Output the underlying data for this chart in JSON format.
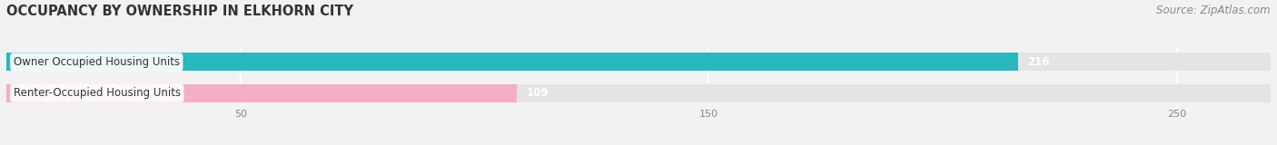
{
  "title": "OCCUPANCY BY OWNERSHIP IN ELKHORN CITY",
  "source": "Source: ZipAtlas.com",
  "categories": [
    "Owner Occupied Housing Units",
    "Renter-Occupied Housing Units"
  ],
  "values": [
    216,
    109
  ],
  "bar_colors": [
    "#29b8bf",
    "#f5afc4"
  ],
  "xlim": [
    0,
    270
  ],
  "xticks": [
    50,
    150,
    250
  ],
  "bar_height": 0.58,
  "title_fontsize": 10.5,
  "source_fontsize": 8.5,
  "label_fontsize": 8.5,
  "value_fontsize": 8.5,
  "background_color": "#f2f2f2",
  "bar_bg_color": "#e4e4e4"
}
